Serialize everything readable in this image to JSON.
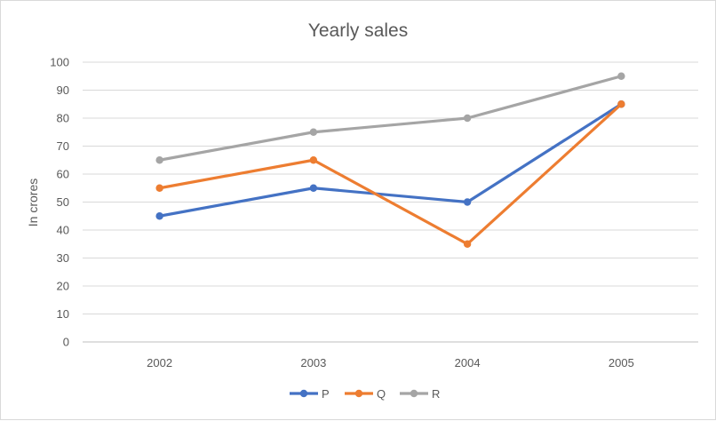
{
  "chart_data": {
    "type": "line",
    "title": "Yearly sales",
    "xlabel": "",
    "ylabel": "In crores",
    "categories": [
      "2002",
      "2003",
      "2004",
      "2005"
    ],
    "ylim": [
      0,
      100
    ],
    "ytick_step": 10,
    "grid": true,
    "legend_position": "bottom",
    "series": [
      {
        "name": "P",
        "color": "#4472C4",
        "values": [
          45,
          55,
          50,
          85
        ]
      },
      {
        "name": "Q",
        "color": "#ED7D31",
        "values": [
          55,
          65,
          35,
          85
        ]
      },
      {
        "name": "R",
        "color": "#A5A5A5",
        "values": [
          65,
          75,
          80,
          95
        ]
      }
    ]
  }
}
